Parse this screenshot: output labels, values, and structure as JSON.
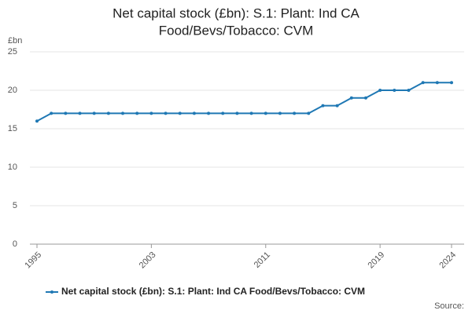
{
  "chart_data": {
    "type": "line",
    "title": [
      "Net capital stock (£bn): S.1: Plant: Ind CA",
      "Food/Bevs/Tobacco: CVM"
    ],
    "y_unit": "£bn",
    "x": [
      1995,
      1996,
      1997,
      1998,
      1999,
      2000,
      2001,
      2002,
      2003,
      2004,
      2005,
      2006,
      2007,
      2008,
      2009,
      2010,
      2011,
      2012,
      2013,
      2014,
      2015,
      2016,
      2017,
      2018,
      2019,
      2020,
      2021,
      2022,
      2023,
      2024
    ],
    "series": [
      {
        "name": "Net capital stock (£bn): S.1: Plant: Ind CA Food/Bevs/Tobacco: CVM",
        "color": "#1f78b4",
        "values": [
          16,
          17,
          17,
          17,
          17,
          17,
          17,
          17,
          17,
          17,
          17,
          17,
          17,
          17,
          17,
          17,
          17,
          17,
          17,
          17,
          18,
          18,
          19,
          19,
          20,
          20,
          20,
          21,
          21,
          21
        ]
      }
    ],
    "xlim": [
      1995,
      2024
    ],
    "xticks": [
      1995,
      2003,
      2011,
      2019,
      2024
    ],
    "ylim": [
      0,
      25
    ],
    "yticks": [
      0,
      5,
      10,
      15,
      20,
      25
    ],
    "grid": true,
    "source": "Source:"
  }
}
